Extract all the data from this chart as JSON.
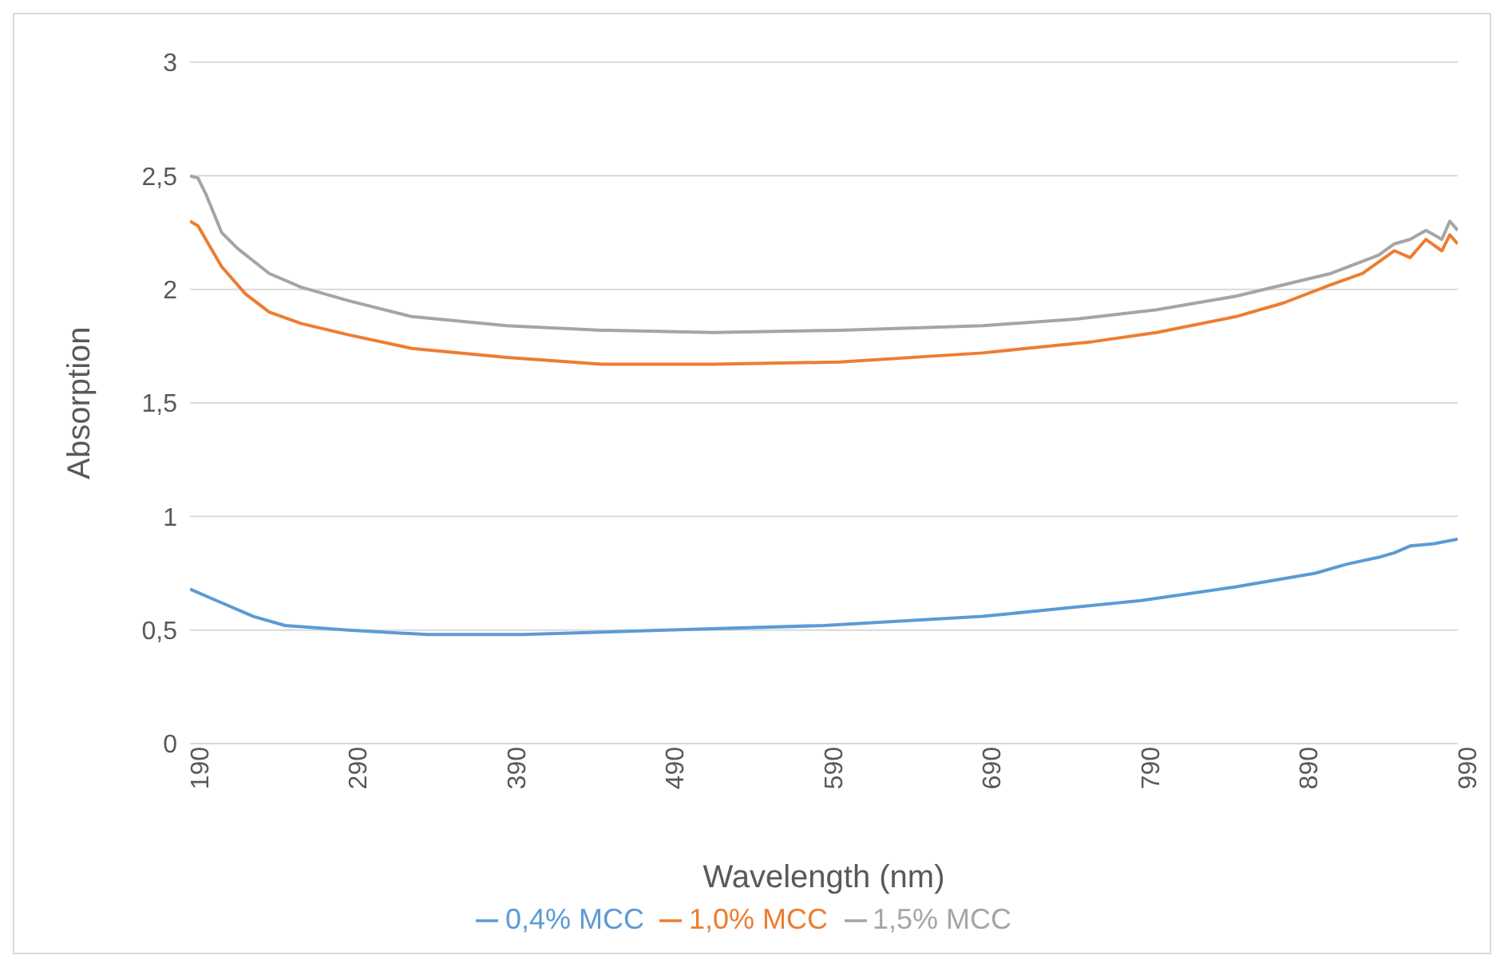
{
  "chart_data": {
    "type": "line",
    "xlabel": "Wavelength (nm)",
    "ylabel": "Absorption",
    "xlim": [
      190,
      990
    ],
    "xticks": [
      190,
      290,
      390,
      490,
      590,
      690,
      790,
      890,
      990
    ],
    "ylim": [
      0,
      3
    ],
    "yticks": [
      0,
      {
        "value": 0.5,
        "label": "0,5"
      },
      1,
      {
        "value": 1.5,
        "label": "1,5"
      },
      2,
      {
        "value": 2.5,
        "label": "2,5"
      },
      3
    ],
    "grid": "y",
    "legend": "bottom",
    "marker": "none",
    "line_style": "solid",
    "series": [
      {
        "name": "0,4% MCC",
        "color": "#5b9bd5",
        "x": [
          190,
          210,
          230,
          250,
          290,
          340,
          400,
          490,
          590,
          690,
          790,
          850,
          900,
          920,
          940,
          950,
          960,
          975,
          990
        ],
        "values": [
          0.68,
          0.62,
          0.56,
          0.52,
          0.5,
          0.48,
          0.48,
          0.5,
          0.52,
          0.56,
          0.63,
          0.69,
          0.75,
          0.79,
          0.82,
          0.84,
          0.87,
          0.88,
          0.9
        ]
      },
      {
        "name": "1,0% MCC",
        "color": "#ed7d31",
        "x": [
          190,
          195,
          210,
          225,
          240,
          260,
          290,
          330,
          390,
          450,
          520,
          600,
          690,
          760,
          800,
          850,
          880,
          910,
          930,
          950,
          960,
          970,
          980,
          985,
          990
        ],
        "values": [
          2.3,
          2.28,
          2.1,
          1.98,
          1.9,
          1.85,
          1.8,
          1.74,
          1.7,
          1.67,
          1.67,
          1.68,
          1.72,
          1.77,
          1.81,
          1.88,
          1.94,
          2.02,
          2.07,
          2.17,
          2.14,
          2.22,
          2.17,
          2.24,
          2.2
        ]
      },
      {
        "name": "1,5% MCC",
        "color": "#a5a5a5",
        "x": [
          190,
          195,
          200,
          210,
          220,
          240,
          260,
          290,
          330,
          390,
          450,
          520,
          600,
          690,
          750,
          800,
          850,
          880,
          910,
          940,
          950,
          960,
          970,
          980,
          985,
          990
        ],
        "values": [
          2.5,
          2.49,
          2.42,
          2.25,
          2.18,
          2.07,
          2.01,
          1.95,
          1.88,
          1.84,
          1.82,
          1.81,
          1.82,
          1.84,
          1.87,
          1.91,
          1.97,
          2.02,
          2.07,
          2.15,
          2.2,
          2.22,
          2.26,
          2.22,
          2.3,
          2.26
        ]
      }
    ]
  }
}
